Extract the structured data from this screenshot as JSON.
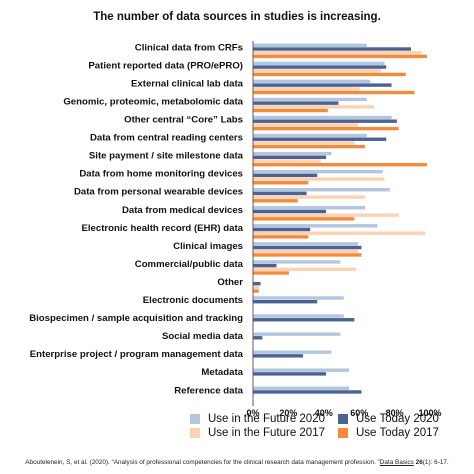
{
  "chart_data": {
    "type": "bar",
    "orientation": "horizontal",
    "title": "The number of data sources in studies is increasing.",
    "categories": [
      "Clinical data from CRFs",
      "Patient reported data (PRO/ePRO)",
      "External clinical lab data",
      "Genomic, proteomic, metabolomic data",
      "Other central “Core” Labs",
      "Data from central reading centers",
      "Site payment / site milestone data",
      "Data from home monitoring devices",
      "Data from personal wearable devices",
      "Data from medical devices",
      "Electronic health record (EHR) data",
      "Clinical images",
      "Commercial/public data",
      "Other",
      "Electronic documents",
      "Biospecimen / sample acquisition and tracking",
      "Social media data",
      "Enterprise project / program management data",
      "Metadata",
      "Reference data"
    ],
    "series": [
      {
        "name": "Use in the Future 2020",
        "color": "#b3c6e0",
        "values": [
          64,
          74,
          66,
          64,
          78,
          64,
          44,
          73,
          77,
          63,
          70,
          59,
          49,
          0,
          51,
          51,
          49,
          44,
          54,
          54
        ]
      },
      {
        "name": "Use Today 2020",
        "color": "#4a6392",
        "values": [
          89,
          75,
          78,
          48,
          81,
          75,
          41,
          36,
          30,
          41,
          32,
          61,
          13,
          4,
          36,
          57,
          5,
          28,
          41,
          61
        ]
      },
      {
        "name": "Use in the Future 2017",
        "color": "#fbd2b4",
        "values": [
          95,
          72,
          60,
          68,
          59,
          57,
          38,
          74,
          63,
          82,
          97,
          59,
          58,
          3,
          0,
          0,
          0,
          0,
          0,
          0
        ]
      },
      {
        "name": "Use Today 2017",
        "color": "#f48a3a",
        "values": [
          98,
          86,
          91,
          42,
          82,
          63,
          98,
          31,
          25,
          57,
          31,
          61,
          20,
          3,
          0,
          0,
          0,
          0,
          0,
          0
        ]
      }
    ],
    "x_ticks": [
      "0%",
      "20%",
      "40%",
      "60%",
      "80%",
      "100%"
    ],
    "xlim": [
      0,
      100
    ],
    "xlabel": "",
    "ylabel": "",
    "grid": false,
    "legend_position": "bottom-right"
  },
  "citation": {
    "pre": "Aboutelenein, S, et al. (2020). “Analysis of professional competencies for the clinical research data management profession. ”",
    "journal": "Data Basics",
    "vol": "26",
    "post": "(1): 6-17."
  }
}
